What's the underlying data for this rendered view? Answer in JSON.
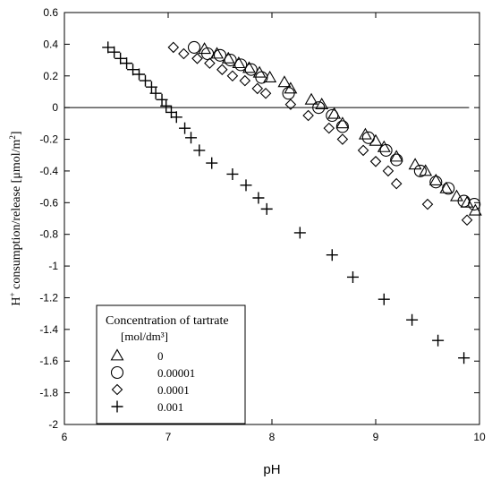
{
  "chart_data": {
    "type": "scatter",
    "title": "",
    "xlabel": "pH",
    "ylabel_main": "H",
    "ylabel_sup": "+",
    "ylabel_rest": " consumption/release [μmol/m",
    "ylabel_sup2": "2",
    "ylabel_end": "]",
    "xlim": [
      6,
      10
    ],
    "ylim": [
      -2,
      0.6
    ],
    "xticks": [
      6,
      7,
      8,
      9,
      10
    ],
    "yticks": [
      0.6,
      0.4,
      0.2,
      0,
      -0.2,
      -0.4,
      -0.6,
      -0.8,
      -1,
      -1.2,
      -1.4,
      -1.6,
      -1.8,
      -2
    ],
    "xtick_labels": [
      "6",
      "7",
      "8",
      "9",
      "10"
    ],
    "ytick_labels": [
      "0.6",
      "0.4",
      "0.2",
      "0",
      "-0.2",
      "-0.4",
      "-0.6",
      "-0.8",
      "-1",
      "-1.2",
      "-1.4",
      "-1.6",
      "-1.8",
      "-2"
    ],
    "zero_line": {
      "y": 0,
      "x_from": 6,
      "x_to": 9.9
    },
    "legend": {
      "title_line1": "Concentration of tartrate",
      "title_line2": "[mol/dm³]",
      "placement": "bottom-left"
    },
    "series": [
      {
        "name": "0",
        "marker": "triangle",
        "points": [
          [
            7.35,
            0.37
          ],
          [
            7.47,
            0.34
          ],
          [
            7.58,
            0.31
          ],
          [
            7.68,
            0.28
          ],
          [
            7.78,
            0.25
          ],
          [
            7.88,
            0.22
          ],
          [
            7.98,
            0.19
          ],
          [
            8.12,
            0.16
          ],
          [
            8.18,
            0.12
          ],
          [
            8.38,
            0.05
          ],
          [
            8.48,
            0.02
          ],
          [
            8.6,
            -0.04
          ],
          [
            8.68,
            -0.1
          ],
          [
            8.9,
            -0.17
          ],
          [
            9.0,
            -0.21
          ],
          [
            9.08,
            -0.25
          ],
          [
            9.2,
            -0.31
          ],
          [
            9.38,
            -0.36
          ],
          [
            9.48,
            -0.4
          ],
          [
            9.58,
            -0.46
          ],
          [
            9.68,
            -0.51
          ],
          [
            9.78,
            -0.56
          ],
          [
            9.88,
            -0.6
          ],
          [
            9.96,
            -0.65
          ]
        ]
      },
      {
        "name": "0.00001",
        "marker": "circle",
        "points": [
          [
            7.25,
            0.38
          ],
          [
            7.38,
            0.34
          ],
          [
            7.5,
            0.33
          ],
          [
            7.6,
            0.3
          ],
          [
            7.7,
            0.27
          ],
          [
            7.8,
            0.24
          ],
          [
            7.9,
            0.19
          ],
          [
            8.16,
            0.09
          ],
          [
            8.45,
            0.0
          ],
          [
            8.58,
            -0.05
          ],
          [
            8.68,
            -0.12
          ],
          [
            8.93,
            -0.19
          ],
          [
            9.1,
            -0.27
          ],
          [
            9.2,
            -0.33
          ],
          [
            9.43,
            -0.4
          ],
          [
            9.58,
            -0.47
          ],
          [
            9.7,
            -0.51
          ],
          [
            9.85,
            -0.59
          ],
          [
            9.95,
            -0.61
          ]
        ]
      },
      {
        "name": "0.0001",
        "marker": "diamond",
        "points": [
          [
            7.05,
            0.38
          ],
          [
            7.15,
            0.34
          ],
          [
            7.28,
            0.31
          ],
          [
            7.4,
            0.28
          ],
          [
            7.52,
            0.24
          ],
          [
            7.62,
            0.2
          ],
          [
            7.74,
            0.17
          ],
          [
            7.86,
            0.12
          ],
          [
            7.94,
            0.09
          ],
          [
            8.18,
            0.02
          ],
          [
            8.35,
            -0.05
          ],
          [
            8.55,
            -0.13
          ],
          [
            8.68,
            -0.2
          ],
          [
            8.88,
            -0.27
          ],
          [
            9.0,
            -0.34
          ],
          [
            9.12,
            -0.4
          ],
          [
            9.2,
            -0.48
          ],
          [
            9.5,
            -0.61
          ],
          [
            9.88,
            -0.71
          ]
        ]
      },
      {
        "name": "0.001",
        "marker": "plus",
        "points": [
          [
            6.42,
            0.38
          ],
          [
            6.48,
            0.35
          ],
          [
            6.54,
            0.31
          ],
          [
            6.6,
            0.28
          ],
          [
            6.66,
            0.24
          ],
          [
            6.72,
            0.21
          ],
          [
            6.78,
            0.17
          ],
          [
            6.84,
            0.13
          ],
          [
            6.88,
            0.09
          ],
          [
            6.94,
            0.05
          ],
          [
            6.98,
            0.01
          ],
          [
            7.03,
            -0.03
          ],
          [
            7.08,
            -0.06
          ],
          [
            7.16,
            -0.13
          ],
          [
            7.22,
            -0.19
          ],
          [
            7.3,
            -0.27
          ],
          [
            7.42,
            -0.35
          ],
          [
            7.62,
            -0.42
          ],
          [
            7.75,
            -0.49
          ],
          [
            7.87,
            -0.57
          ],
          [
            7.95,
            -0.64
          ],
          [
            8.27,
            -0.79
          ],
          [
            8.58,
            -0.93
          ],
          [
            8.78,
            -1.07
          ],
          [
            9.08,
            -1.21
          ],
          [
            9.35,
            -1.34
          ],
          [
            9.6,
            -1.47
          ],
          [
            9.85,
            -1.58
          ]
        ]
      }
    ]
  }
}
